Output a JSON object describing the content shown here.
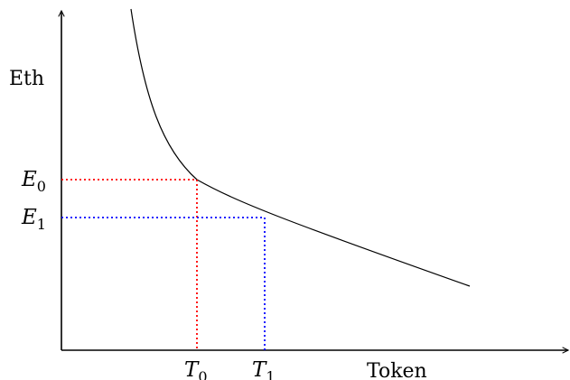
{
  "axes": {
    "y_label": "Eth",
    "x_label": "Token"
  },
  "points": [
    {
      "name": "T0_E0",
      "x_label_base": "T",
      "x_label_sub": "0",
      "y_label_base": "E",
      "y_label_sub": "0",
      "color": "#ff0000"
    },
    {
      "name": "T1_E1",
      "x_label_base": "T",
      "x_label_sub": "1",
      "y_label_base": "E",
      "y_label_sub": "1",
      "color": "#0000ff"
    }
  ],
  "colors": {
    "axis": "#000000",
    "curve": "#000000",
    "point0_guide": "#ff0000",
    "point1_guide": "#0000ff"
  }
}
